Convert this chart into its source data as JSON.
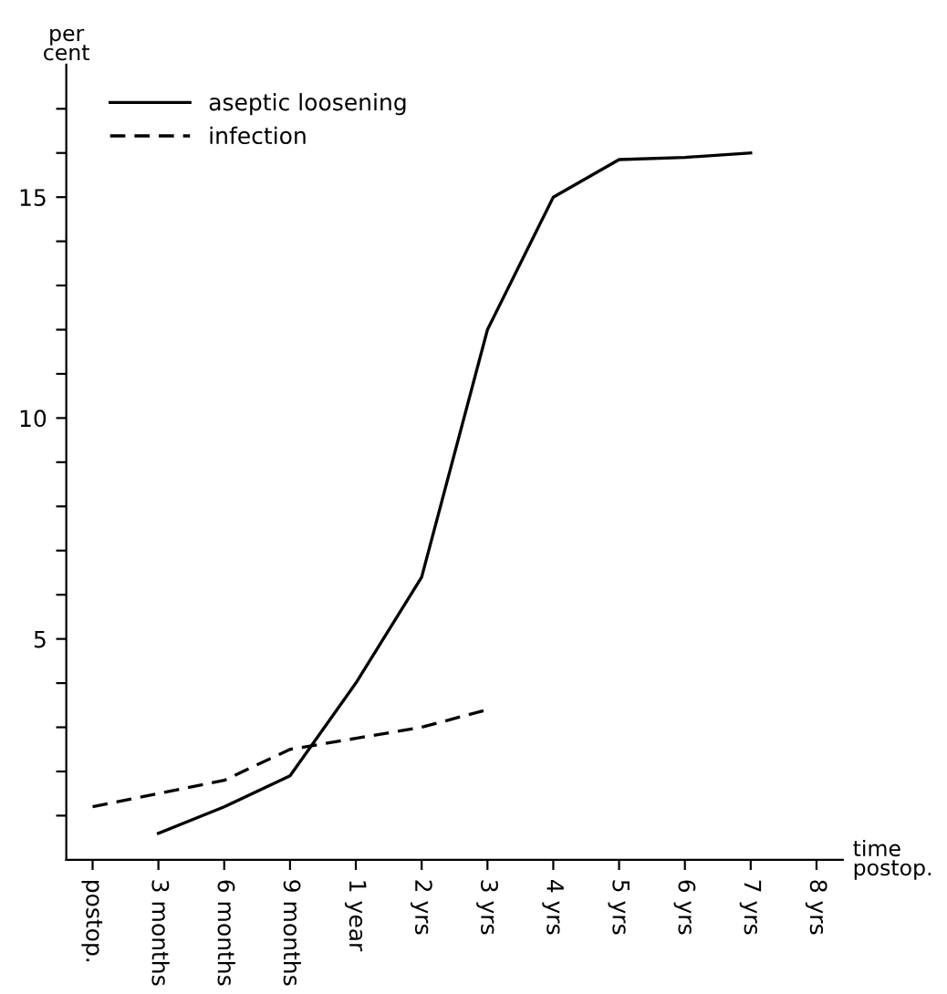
{
  "chart_data": {
    "type": "line",
    "xlabel": "time\npostop.",
    "ylabel": "per\ncent",
    "categories": [
      "postop.",
      "3 months",
      "6 months",
      "9 months",
      "1 year",
      "2 yrs",
      "3 yrs",
      "4 yrs",
      "5 yrs",
      "6 yrs",
      "7 yrs",
      "8 yrs"
    ],
    "ylim": [
      0,
      18
    ],
    "yticks": [
      {
        "value": 1,
        "label": null
      },
      {
        "value": 2,
        "label": null
      },
      {
        "value": 3,
        "label": null
      },
      {
        "value": 4,
        "label": null
      },
      5,
      {
        "value": 6,
        "label": null
      },
      {
        "value": 7,
        "label": null
      },
      {
        "value": 8,
        "label": null
      },
      {
        "value": 9,
        "label": null
      },
      10,
      {
        "value": 11,
        "label": null
      },
      {
        "value": 12,
        "label": null
      },
      {
        "value": 13,
        "label": null
      },
      {
        "value": 14,
        "label": null
      },
      15,
      {
        "value": 16,
        "label": null
      },
      {
        "value": 17,
        "label": null
      }
    ],
    "legend": "top left",
    "marker": "none",
    "series": [
      {
        "name": "aseptic loosening",
        "color": "#000000",
        "line_style": "solid",
        "values": [
          null,
          0.6,
          1.2,
          1.9,
          4.0,
          6.4,
          12.0,
          15.0,
          15.85,
          15.9,
          16.0,
          null
        ]
      },
      {
        "name": "infection",
        "color": "#000000",
        "line_style": "dashed",
        "values": [
          1.2,
          1.5,
          1.8,
          2.5,
          2.75,
          3.0,
          3.4,
          null,
          null,
          null,
          null,
          null
        ]
      }
    ]
  }
}
